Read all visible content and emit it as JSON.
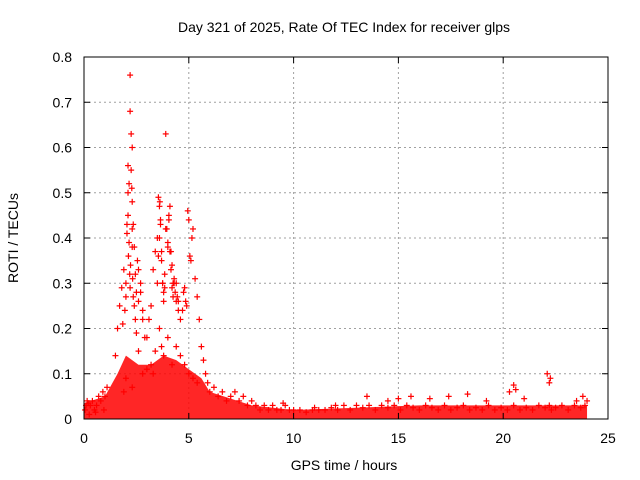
{
  "chart_data": {
    "type": "scatter",
    "title": "Day 321 of 2025, Rate Of TEC Index for receiver glps",
    "xlabel": "GPS time / hours",
    "ylabel": "ROTI / TECUs",
    "xlim": [
      0,
      25
    ],
    "ylim": [
      0,
      0.8
    ],
    "xticks": [
      0,
      5,
      10,
      15,
      20,
      25
    ],
    "xtick_labels": [
      "0",
      "5",
      "10",
      "15",
      "20",
      "25"
    ],
    "yticks": [
      0,
      0.1,
      0.2,
      0.3,
      0.4,
      0.5,
      0.6,
      0.7,
      0.8
    ],
    "ytick_labels": [
      "0",
      "0.1",
      "0.2",
      "0.3",
      "0.4",
      "0.5",
      "0.6",
      "0.7",
      "0.8"
    ],
    "grid": true,
    "marker": "+",
    "color": "#ff0000",
    "series": [
      {
        "name": "ROTI",
        "x": [
          0.05,
          0.1,
          0.15,
          0.2,
          0.3,
          0.4,
          0.5,
          0.6,
          0.7,
          0.8,
          0.9,
          1.0,
          1.1,
          0.25,
          0.55,
          0.95,
          1.5,
          1.6,
          1.7,
          1.8,
          1.9,
          2.0,
          2.05,
          2.1,
          2.1,
          2.15,
          2.2,
          2.2,
          2.25,
          2.3,
          2.3,
          2.35,
          2.4,
          2.45,
          2.5,
          2.55,
          2.6,
          2.7,
          2.8,
          2.9,
          1.85,
          1.95,
          2.0,
          2.05,
          2.1,
          2.12,
          2.15,
          2.18,
          2.2,
          2.22,
          2.25,
          2.28,
          2.3,
          2.3,
          2.32,
          2.35,
          2.4,
          2.45,
          2.5,
          2.6,
          2.7,
          2.8,
          3.0,
          3.1,
          3.2,
          3.3,
          3.4,
          3.5,
          3.55,
          3.6,
          3.65,
          3.7,
          3.75,
          3.8,
          3.85,
          3.9,
          3.95,
          4.0,
          4.05,
          4.1,
          4.15,
          4.2,
          4.25,
          4.3,
          4.35,
          4.4,
          4.45,
          4.5,
          3.5,
          3.55,
          3.6,
          3.62,
          3.65,
          3.7,
          3.75,
          3.8,
          3.85,
          3.9,
          4.0,
          4.05,
          4.1,
          4.15,
          4.2,
          4.25,
          4.3,
          4.4,
          4.5,
          4.6,
          4.7,
          4.75,
          4.8,
          4.85,
          4.9,
          4.95,
          5.0,
          5.05,
          5.1,
          5.15,
          5.2,
          5.3,
          5.4,
          5.5,
          5.6,
          5.7,
          5.8,
          5.9,
          3.2,
          3.3,
          3.4,
          3.6,
          3.7,
          3.8,
          4.0,
          4.2,
          4.4,
          4.6,
          4.8,
          5.0,
          5.2,
          5.4,
          2.6,
          2.8,
          3.0,
          1.9,
          2.0,
          2.3,
          6.0,
          6.2,
          6.4,
          6.6,
          6.8,
          7.0,
          7.2,
          7.4,
          7.6,
          7.8,
          8.0,
          8.2,
          8.4,
          8.6,
          8.8,
          9.0,
          9.2,
          9.4,
          9.6,
          9.8,
          10.0,
          10.3,
          10.6,
          10.9,
          11.2,
          11.5,
          11.8,
          12.1,
          12.4,
          12.7,
          13.0,
          13.3,
          13.6,
          13.9,
          14.2,
          14.5,
          14.8,
          15.1,
          15.4,
          15.7,
          16.0,
          16.3,
          16.6,
          16.9,
          17.2,
          17.5,
          17.8,
          18.1,
          18.4,
          18.7,
          19.0,
          19.3,
          19.6,
          19.9,
          20.2,
          20.5,
          20.8,
          21.1,
          21.4,
          21.7,
          22.0,
          22.2,
          22.3,
          22.5,
          22.8,
          23.1,
          23.4,
          23.7,
          23.9,
          24.0,
          13.5,
          14.5,
          15.0,
          15.6,
          16.5,
          17.4,
          18.3,
          19.2,
          20.3,
          20.5,
          20.6,
          22.1,
          22.2,
          22.25,
          21.0,
          23.5,
          23.8,
          11.0,
          12.0,
          9.5
        ],
        "y": [
          0.02,
          0.03,
          0.04,
          0.035,
          0.03,
          0.04,
          0.02,
          0.03,
          0.05,
          0.04,
          0.06,
          0.05,
          0.07,
          0.01,
          0.015,
          0.02,
          0.14,
          0.2,
          0.25,
          0.29,
          0.33,
          0.3,
          0.43,
          0.5,
          0.56,
          0.52,
          0.76,
          0.68,
          0.63,
          0.6,
          0.48,
          0.43,
          0.38,
          0.32,
          0.28,
          0.35,
          0.33,
          0.3,
          0.22,
          0.18,
          0.21,
          0.24,
          0.27,
          0.41,
          0.45,
          0.36,
          0.39,
          0.32,
          0.29,
          0.34,
          0.55,
          0.51,
          0.42,
          0.38,
          0.31,
          0.27,
          0.25,
          0.22,
          0.19,
          0.26,
          0.28,
          0.24,
          0.18,
          0.22,
          0.25,
          0.33,
          0.37,
          0.4,
          0.49,
          0.47,
          0.44,
          0.35,
          0.3,
          0.26,
          0.29,
          0.63,
          0.42,
          0.38,
          0.45,
          0.47,
          0.37,
          0.34,
          0.3,
          0.3,
          0.28,
          0.26,
          0.27,
          0.24,
          0.3,
          0.36,
          0.4,
          0.48,
          0.43,
          0.37,
          0.3,
          0.28,
          0.32,
          0.42,
          0.39,
          0.44,
          0.37,
          0.33,
          0.29,
          0.27,
          0.31,
          0.3,
          0.26,
          0.22,
          0.24,
          0.28,
          0.29,
          0.26,
          0.25,
          0.46,
          0.44,
          0.36,
          0.35,
          0.4,
          0.42,
          0.31,
          0.27,
          0.22,
          0.16,
          0.13,
          0.1,
          0.08,
          0.12,
          0.1,
          0.15,
          0.2,
          0.16,
          0.14,
          0.18,
          0.12,
          0.16,
          0.14,
          0.12,
          0.1,
          0.09,
          0.08,
          0.15,
          0.1,
          0.11,
          0.06,
          0.09,
          0.07,
          0.06,
          0.07,
          0.05,
          0.06,
          0.04,
          0.05,
          0.06,
          0.04,
          0.05,
          0.03,
          0.04,
          0.03,
          0.02,
          0.03,
          0.02,
          0.03,
          0.02,
          0.02,
          0.03,
          0.02,
          0.02,
          0.02,
          0.015,
          0.02,
          0.02,
          0.02,
          0.025,
          0.02,
          0.03,
          0.02,
          0.03,
          0.025,
          0.03,
          0.02,
          0.03,
          0.025,
          0.03,
          0.02,
          0.03,
          0.025,
          0.02,
          0.03,
          0.025,
          0.02,
          0.03,
          0.02,
          0.025,
          0.03,
          0.02,
          0.025,
          0.02,
          0.03,
          0.02,
          0.025,
          0.02,
          0.03,
          0.02,
          0.025,
          0.02,
          0.03,
          0.025,
          0.03,
          0.02,
          0.025,
          0.03,
          0.02,
          0.03,
          0.025,
          0.03,
          0.04,
          0.05,
          0.04,
          0.045,
          0.05,
          0.045,
          0.05,
          0.055,
          0.04,
          0.06,
          0.075,
          0.065,
          0.1,
          0.08,
          0.09,
          0.045,
          0.04,
          0.05,
          0.025,
          0.03,
          0.035
        ]
      }
    ]
  }
}
